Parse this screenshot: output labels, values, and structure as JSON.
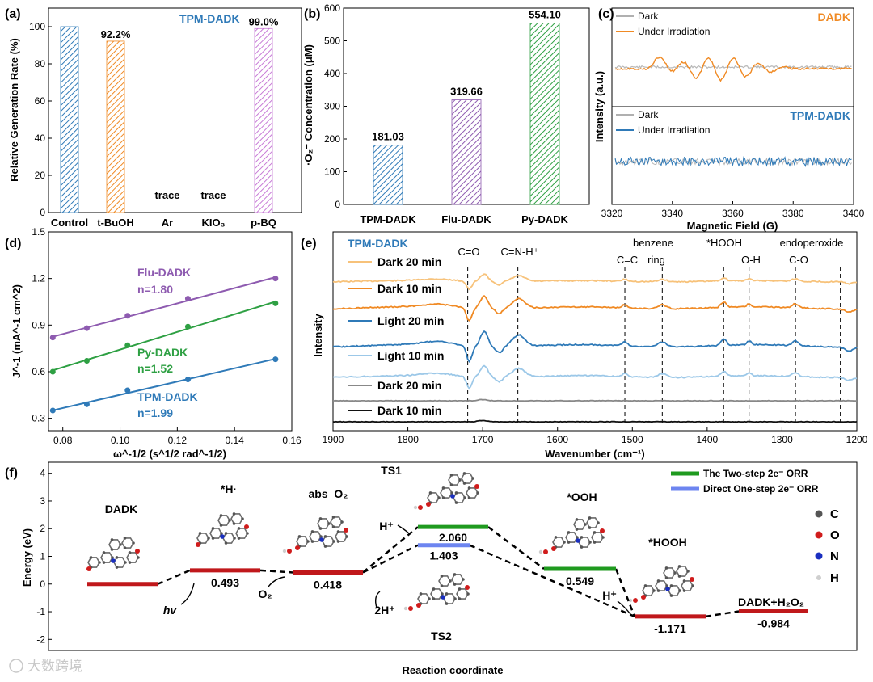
{
  "panels": {
    "a": {
      "label": "(a)",
      "title": "TPM-DADK"
    },
    "b": {
      "label": "(b)"
    },
    "c": {
      "label": "(c)"
    },
    "d": {
      "label": "(d)"
    },
    "e": {
      "label": "(e)",
      "title": "TPM-DADK"
    },
    "f": {
      "label": "(f)"
    }
  },
  "colors": {
    "blue": "#2f7ab8",
    "orange": "#f08a24",
    "purple": "#8e5bb0",
    "green": "#2ea043",
    "lightblue": "#9cc8e8",
    "lightorange": "#f7c27a",
    "gray": "#888888",
    "red": "#c0181b",
    "path_green": "#1f9a1f",
    "path_blue": "#6d85f0"
  },
  "watermark": "大数跨境",
  "chart_data": [
    {
      "id": "a",
      "type": "bar",
      "title": "TPM-DADK",
      "categories": [
        "Control",
        "t-BuOH",
        "Ar",
        "KIO₃",
        "p-BQ"
      ],
      "values": [
        100,
        92.2,
        0,
        0,
        99.0
      ],
      "bar_labels": [
        "",
        "92.2%",
        "trace",
        "trace",
        "99.0%"
      ],
      "bar_colors": [
        "#2f7ab8",
        "#f08a24",
        "",
        "",
        "#c77ad6"
      ],
      "xlabel": "",
      "ylabel": "Relative Generation Rate (%)",
      "ylim": [
        0,
        110
      ],
      "yticks": [
        0,
        20,
        40,
        60,
        80,
        100
      ]
    },
    {
      "id": "b",
      "type": "bar",
      "categories": [
        "TPM-DADK",
        "Flu-DADK",
        "Py-DADK"
      ],
      "values": [
        181.03,
        319.66,
        554.1
      ],
      "bar_labels": [
        "181.03",
        "319.66",
        "554.10"
      ],
      "bar_colors": [
        "#2f7ab8",
        "#8e5bb0",
        "#2ea043"
      ],
      "xlabel": "",
      "ylabel": "·O₂⁻ Concentration (μM)",
      "ylim": [
        0,
        600
      ],
      "yticks": [
        0,
        100,
        200,
        300,
        400,
        500,
        600
      ]
    },
    {
      "id": "c",
      "type": "line",
      "xlabel": "Magnetic Field (G)",
      "ylabel": "Intensity (a.u.)",
      "xlim": [
        3320,
        3400
      ],
      "xticks": [
        3320,
        3340,
        3360,
        3380,
        3400
      ],
      "subplots": [
        {
          "title": "DADK",
          "legend": [
            "Dark",
            "Under Irradiation"
          ],
          "colors": [
            "#b0b0b0",
            "#f08a24"
          ]
        },
        {
          "title": "TPM-DADK",
          "legend": [
            "Dark",
            "Under Irradiation"
          ],
          "colors": [
            "#b0b0b0",
            "#2f7ab8"
          ]
        }
      ]
    },
    {
      "id": "d",
      "type": "scatter",
      "xlabel": "ω^-1/2 (s^1/2 rad^-1/2)",
      "ylabel": "J^-1 (mA^-1 cm^2)",
      "xlim": [
        0.075,
        0.16
      ],
      "ylim": [
        0.22,
        1.5
      ],
      "xticks": [
        0.08,
        0.1,
        0.12,
        0.14,
        0.16
      ],
      "yticks": [
        0.3,
        0.6,
        0.9,
        1.2,
        1.5
      ],
      "x": [
        0.0765,
        0.0884,
        0.1026,
        0.1237,
        0.1543
      ],
      "series": [
        {
          "name": "Flu-DADK",
          "n_label": "n=1.80",
          "color": "#8e5bb0",
          "values": [
            0.82,
            0.88,
            0.96,
            1.07,
            1.2
          ]
        },
        {
          "name": "Py-DADK",
          "n_label": "n=1.52",
          "color": "#2ea043",
          "values": [
            0.6,
            0.67,
            0.77,
            0.89,
            1.04
          ]
        },
        {
          "name": "TPM-DADK",
          "n_label": "n=1.99",
          "color": "#2f7ab8",
          "values": [
            0.35,
            0.39,
            0.48,
            0.55,
            0.68
          ]
        }
      ]
    },
    {
      "id": "e",
      "type": "line",
      "title": "TPM-DADK",
      "xlabel": "Wavenumber (cm⁻¹)",
      "ylabel": "Intensity",
      "xlim": [
        1900,
        1200
      ],
      "xticks": [
        1900,
        1800,
        1700,
        1600,
        1500,
        1400,
        1300,
        1200
      ],
      "series": [
        {
          "name": "Dark 20 min",
          "color": "#f7c27a"
        },
        {
          "name": "Dark 10 min",
          "color": "#f08a24"
        },
        {
          "name": "Light 20 min",
          "color": "#2f7ab8"
        },
        {
          "name": "Light 10 min",
          "color": "#9cc8e8"
        },
        {
          "name": "Dark 20 min",
          "color": "#888888"
        },
        {
          "name": "Dark 10 min",
          "color": "#111111"
        }
      ],
      "markers": [
        {
          "label": "C=O",
          "x": 1720
        },
        {
          "label": "C=N-H⁺",
          "x": 1653
        },
        {
          "label": "C=C",
          "x": 1510
        },
        {
          "label": "benzene ring",
          "x": 1460
        },
        {
          "label": "*HOOH",
          "x": 1378
        },
        {
          "label": "O-H",
          "x": 1344
        },
        {
          "label": "C-O",
          "x": 1282
        },
        {
          "label": "endoperoxide",
          "x": 1222
        }
      ]
    },
    {
      "id": "f",
      "type": "line",
      "xlabel": "Reaction coordinate",
      "ylabel": "Energy (eV)",
      "ylim": [
        -2.4,
        4.4
      ],
      "yticks": [
        -2,
        -1,
        0,
        1,
        2,
        3,
        4
      ],
      "legend": [
        "The Two-step 2e⁻ ORR",
        "Direct One-step 2e⁻ ORR"
      ],
      "atoms": [
        "C",
        "O",
        "N",
        "H"
      ],
      "states": [
        {
          "name": "DADK",
          "energy": 0.0,
          "label": ""
        },
        {
          "name": "*H·",
          "energy": 0.493,
          "label": "0.493"
        },
        {
          "name": "abs_O₂",
          "energy": 0.418,
          "label": "0.418"
        },
        {
          "name": "TS1",
          "energy": 2.06,
          "label": "2.060"
        },
        {
          "name": "TS2",
          "energy": 1.403,
          "label": "1.403"
        },
        {
          "name": "*OOH",
          "energy": 0.549,
          "label": "0.549"
        },
        {
          "name": "*HOOH",
          "energy": -1.171,
          "label": "-1.171"
        },
        {
          "name": "DADK+H₂O₂",
          "energy": -0.984,
          "label": "-0.984"
        }
      ],
      "step_labels": [
        "hv",
        "O₂",
        "2H⁺",
        "H⁺",
        "H⁺"
      ]
    }
  ]
}
